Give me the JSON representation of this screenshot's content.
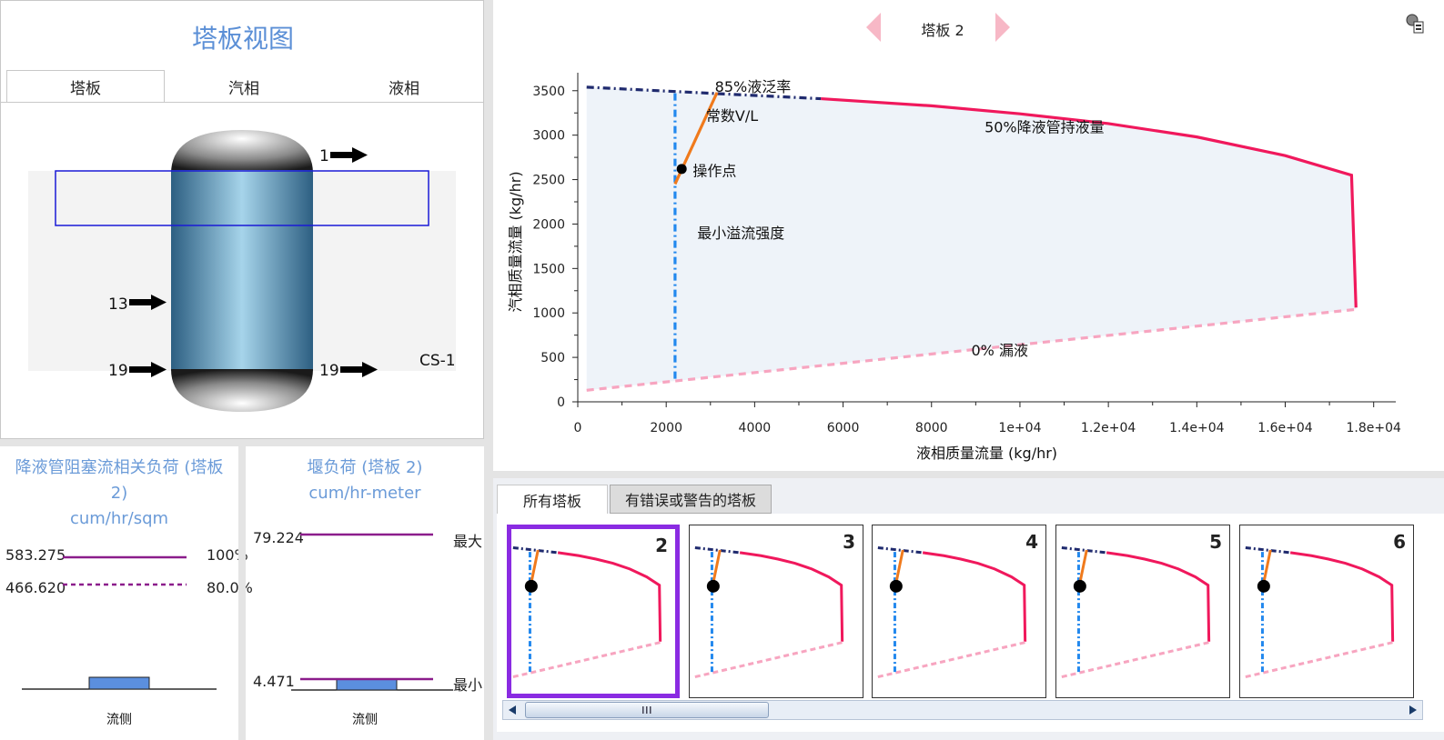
{
  "tray_view": {
    "title": "塔板视图",
    "tabs": [
      "塔板",
      "汽相",
      "液相"
    ],
    "streams": {
      "top_out": "1",
      "feed": "13",
      "bottom_in": "19",
      "bottom_out": "19"
    },
    "column_label": "CS-1"
  },
  "downcomer_panel": {
    "title_line1": "降液管阻塞流相关负荷 (塔板",
    "title_line2": "2)",
    "unit": "cum/hr/sqm",
    "value_max": "583.275",
    "value_80": "466.620",
    "label_max": "100%",
    "label_80": "80.0%",
    "axis_label": "流侧"
  },
  "weir_panel": {
    "title": "堰负荷 (塔板 2)",
    "unit": "cum/hr-meter",
    "value_max": "79.224",
    "value_min": "4.471",
    "label_max": "最大",
    "label_min": "最小",
    "axis_label": "流侧"
  },
  "nav": {
    "label": "塔板 2"
  },
  "chart_data": {
    "type": "line",
    "xlabel": "液相质量流量 (kg/hr)",
    "ylabel": "汽相质量流量 (kg/hr)",
    "xlim": [
      0,
      18500
    ],
    "ylim": [
      0,
      3600
    ],
    "x_ticks": [
      "0",
      "2000",
      "4000",
      "6000",
      "8000",
      "1e+04",
      "1.2e+04",
      "1.4e+04",
      "1.6e+04",
      "1.8e+04"
    ],
    "x_tick_values": [
      0,
      2000,
      4000,
      6000,
      8000,
      10000,
      12000,
      14000,
      16000,
      18000
    ],
    "y_ticks": [
      "0",
      "500",
      "1000",
      "1500",
      "2000",
      "2500",
      "3000",
      "3500"
    ],
    "y_tick_values": [
      0,
      500,
      1000,
      1500,
      2000,
      2500,
      3000,
      3500
    ],
    "series": [
      {
        "name": "85%液泛率",
        "color": "#1f2a6e",
        "style": "dashdot",
        "x": [
          200,
          5500
        ],
        "y": [
          3540,
          3410
        ]
      },
      {
        "name": "50%降液管持液量",
        "color": "#f0185c",
        "style": "solid",
        "x": [
          5500,
          8000,
          10000,
          12000,
          14000,
          16000,
          17500,
          17600
        ],
        "y": [
          3410,
          3330,
          3240,
          3130,
          2980,
          2770,
          2550,
          1060
        ]
      },
      {
        "name": "0% 漏液",
        "color": "#f7a5c0",
        "style": "dashed",
        "x": [
          200,
          17600
        ],
        "y": [
          130,
          1040
        ]
      },
      {
        "name": "最小溢流强度",
        "color": "#2288ee",
        "style": "dashdot",
        "x": [
          2200,
          2200
        ],
        "y": [
          260,
          3480
        ]
      },
      {
        "name": "常数V/L",
        "color": "#f07a1c",
        "style": "solid",
        "x": [
          2200,
          3150
        ],
        "y": [
          2450,
          3480
        ]
      }
    ],
    "operating_point": {
      "name": "操作点",
      "x": [
        2350
      ],
      "y": [
        2620
      ]
    }
  },
  "bottom_tabs": [
    "所有塔板",
    "有错误或警告的塔板"
  ],
  "thumbnails": [
    "2",
    "3",
    "4",
    "5",
    "6"
  ],
  "colors": {
    "accent_title": "#5b8fd6",
    "selected_thumb": "#8a2be2",
    "purple_line": "#8b1c8b"
  }
}
